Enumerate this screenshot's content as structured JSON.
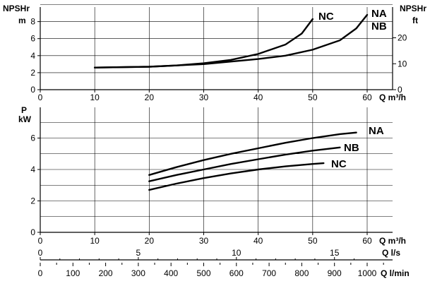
{
  "chart_data": [
    {
      "type": "line",
      "title": "",
      "ylabel": [
        "NPSHr",
        "m"
      ],
      "ylabel_right": [
        "NPSHr",
        "ft"
      ],
      "xlabel": "Q m³/h",
      "xlim": [
        0,
        60
      ],
      "ylim": [
        0,
        10
      ],
      "ylim_right": [
        0,
        32.8
      ],
      "x_ticks": [
        "0",
        "10",
        "20",
        "30",
        "40",
        "50",
        "60"
      ],
      "y_ticks": [
        "0",
        "2",
        "4",
        "6",
        "8"
      ],
      "y_ticks_right": [
        "0",
        "10",
        "20"
      ],
      "grid": true,
      "series": [
        {
          "name": "NC",
          "x": [
            10,
            20,
            25,
            30,
            35,
            40,
            45,
            48,
            50
          ],
          "y": [
            2.6,
            2.7,
            2.85,
            3.1,
            3.5,
            4.2,
            5.3,
            6.6,
            8.3
          ]
        },
        {
          "name": "NA",
          "x": [
            10,
            20,
            30,
            35,
            40,
            45,
            50,
            55,
            58,
            60
          ],
          "y": [
            2.6,
            2.7,
            3.0,
            3.3,
            3.6,
            4.0,
            4.7,
            5.8,
            7.2,
            8.8
          ]
        },
        {
          "name": "NB",
          "x": [],
          "y": []
        }
      ]
    },
    {
      "type": "line",
      "title": "",
      "ylabel": [
        "P",
        "kW"
      ],
      "xlabel": "Q m³/h",
      "xlim": [
        0,
        60
      ],
      "ylim": [
        0,
        7.5
      ],
      "x_ticks": [
        "0",
        "10",
        "20",
        "30",
        "40",
        "50",
        "60"
      ],
      "y_ticks": [
        "0",
        "2",
        "4",
        "6"
      ],
      "grid": true,
      "series": [
        {
          "name": "NA",
          "x": [
            20,
            25,
            30,
            35,
            40,
            45,
            50,
            55,
            58
          ],
          "y": [
            3.65,
            4.15,
            4.6,
            5.0,
            5.35,
            5.7,
            6.0,
            6.25,
            6.35
          ]
        },
        {
          "name": "NB",
          "x": [
            20,
            25,
            30,
            35,
            40,
            45,
            50,
            55
          ],
          "y": [
            3.25,
            3.65,
            4.0,
            4.35,
            4.65,
            4.95,
            5.2,
            5.4
          ]
        },
        {
          "name": "NC",
          "x": [
            20,
            25,
            30,
            35,
            40,
            45,
            50,
            52
          ],
          "y": [
            2.7,
            3.1,
            3.45,
            3.75,
            4.0,
            4.2,
            4.35,
            4.4
          ]
        }
      ]
    }
  ],
  "secondary_axes": [
    {
      "label": "Q l/s",
      "ticks": [
        "0",
        "5",
        "10",
        "15"
      ],
      "tick_values": [
        0,
        5,
        10,
        15
      ]
    },
    {
      "label": "Q l/min",
      "ticks": [
        "0",
        "100",
        "200",
        "300",
        "400",
        "500",
        "600",
        "700",
        "800",
        "900",
        "1000"
      ],
      "tick_values": [
        0,
        100,
        200,
        300,
        400,
        500,
        600,
        700,
        800,
        900,
        1000
      ]
    }
  ]
}
